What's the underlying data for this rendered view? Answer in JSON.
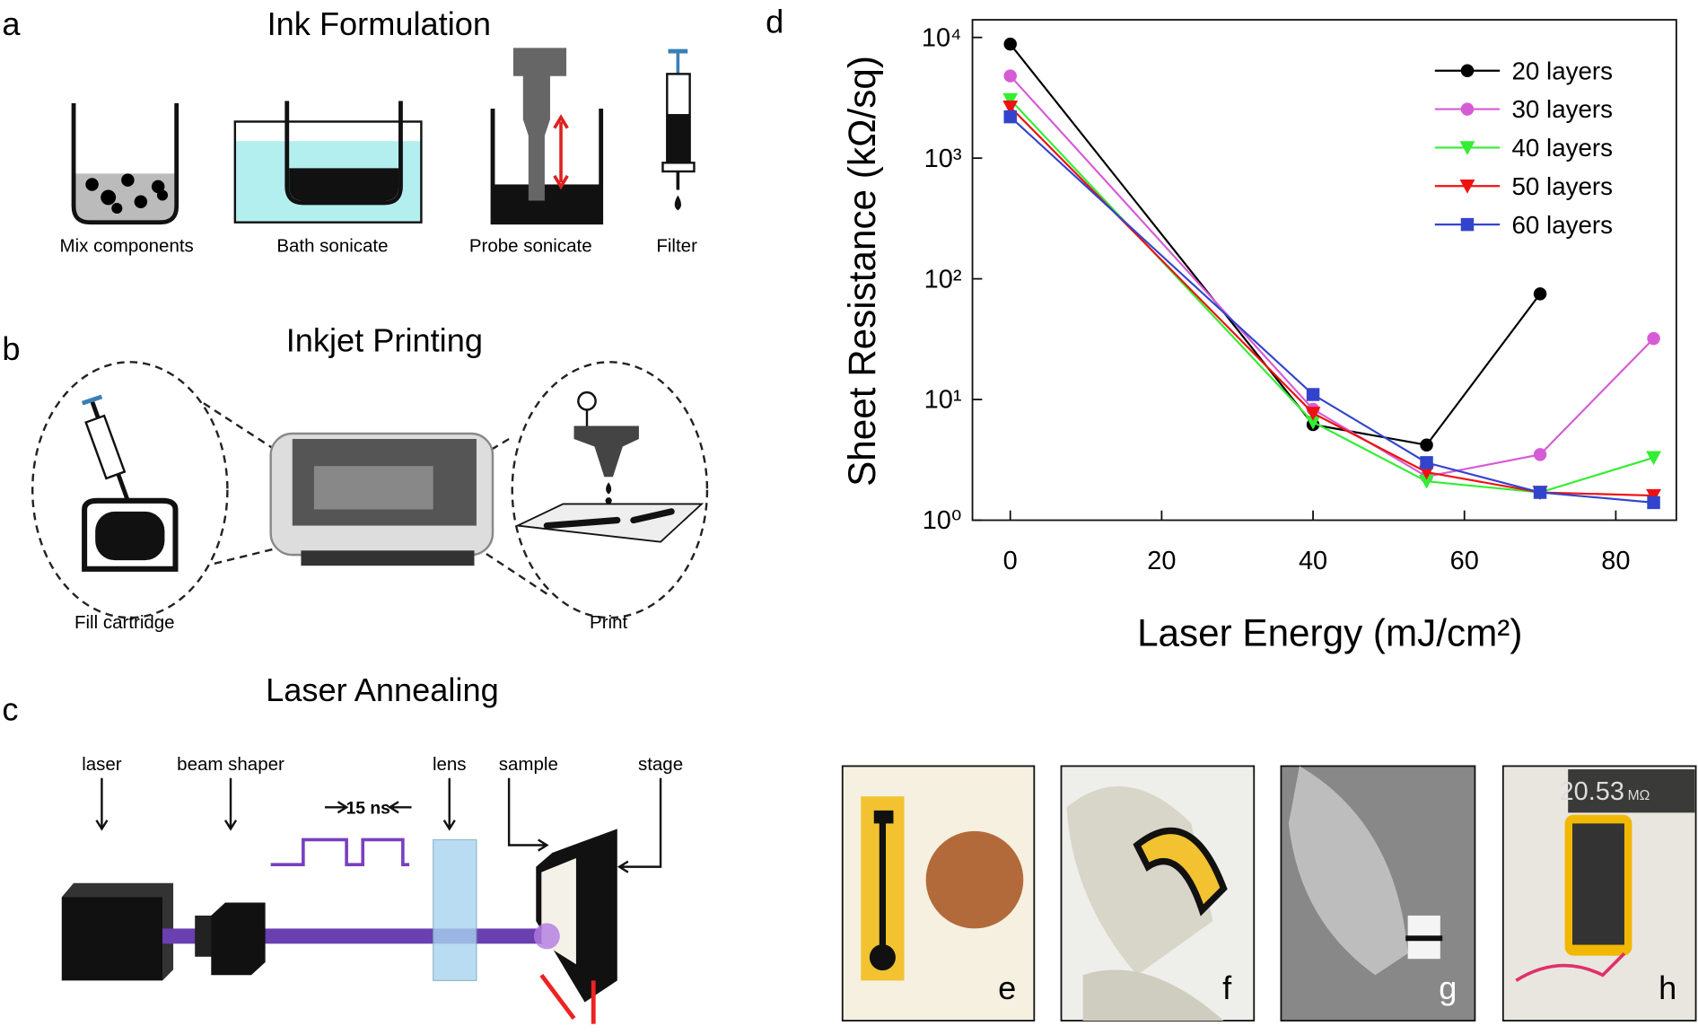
{
  "figure": {
    "a": {
      "label": "a",
      "title": "Ink Formulation",
      "steps": [
        "Mix components",
        "Bath sonicate",
        "Probe sonicate",
        "Filter"
      ]
    },
    "b": {
      "label": "b",
      "title": "Inkjet Printing",
      "steps": [
        "Fill cartridge",
        "Print"
      ]
    },
    "c": {
      "label": "c",
      "title": "Laser Annealing",
      "parts": [
        "laser",
        "beam shaper",
        "lens",
        "sample",
        "stage"
      ],
      "pulse_width": "15 ns"
    },
    "photos": {
      "labels": [
        "e",
        "f",
        "g",
        "h"
      ],
      "meter_reading": "20.53",
      "meter_unit": "MΩ"
    }
  },
  "chart_data": {
    "type": "line",
    "panel_label": "d",
    "x_label": "Laser Energy (mJ/cm²)",
    "y_label": "Sheet Resistance (kΩ/sq)",
    "x": [
      0,
      40,
      55,
      70,
      85
    ],
    "xlim": [
      -5,
      88
    ],
    "xticks": [
      0,
      20,
      40,
      60,
      80
    ],
    "log_y": true,
    "ylim": [
      1,
      14000
    ],
    "yticks": [
      {
        "value": 1,
        "label": "10⁰"
      },
      {
        "value": 10,
        "label": "10¹"
      },
      {
        "value": 100,
        "label": "10²"
      },
      {
        "value": 1000,
        "label": "10³"
      },
      {
        "value": 10000,
        "label": "10⁴"
      }
    ],
    "legend": "upper right",
    "series": [
      {
        "name": "20 layers",
        "color": "#000000",
        "marker": "circle",
        "values": [
          8800,
          6.2,
          4.2,
          75,
          null
        ]
      },
      {
        "name": "30 layers",
        "color": "#d65cd6",
        "marker": "circle",
        "values": [
          4800,
          8.3,
          2.3,
          3.5,
          32
        ]
      },
      {
        "name": "40 layers",
        "color": "#33ee33",
        "marker": "triangle-down",
        "values": [
          3050,
          6.5,
          2.1,
          1.7,
          3.3
        ]
      },
      {
        "name": "50 layers",
        "color": "#ee1111",
        "marker": "triangle-down",
        "values": [
          2650,
          7.7,
          2.5,
          1.7,
          1.6
        ]
      },
      {
        "name": "60 layers",
        "color": "#3344cc",
        "marker": "square",
        "values": [
          2200,
          11,
          3.0,
          1.7,
          1.4
        ]
      }
    ]
  }
}
